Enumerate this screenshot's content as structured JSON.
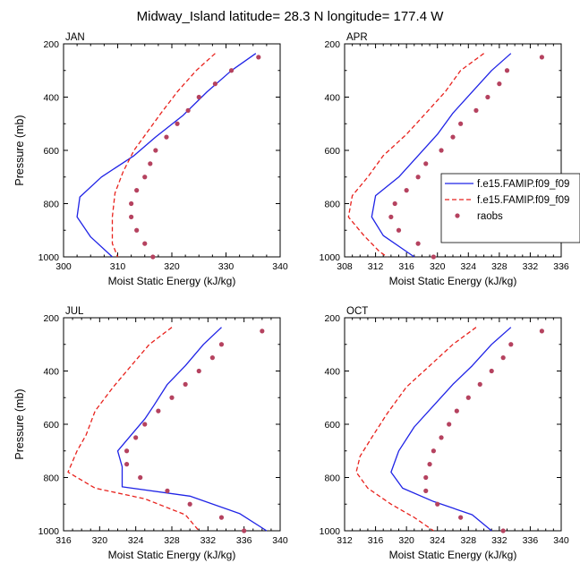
{
  "title": "Midway_Island  latitude= 28.3 N longitude= 177.4 W",
  "colors": {
    "model1": "#1f23e6",
    "model2": "#e8221d",
    "obs": "#b5425f"
  },
  "legend": {
    "placement": "right of APR panel",
    "entries": [
      {
        "label": "f.e15.FAMIP.f09_f09",
        "style": "solid",
        "color": "#1f23e6"
      },
      {
        "label": "f.e15.FAMIP.f09_f09",
        "style": "dashed",
        "color": "#e8221d"
      },
      {
        "label": "raobs",
        "style": "dots",
        "color": "#b5425f"
      }
    ]
  },
  "chart_data": [
    {
      "type": "line",
      "label": "JAN",
      "xlabel": "Moist Static Energy (kJ/kg)",
      "ylabel": "Pressure (mb)",
      "xlim": [
        300,
        340
      ],
      "xticks": [
        300,
        310,
        320,
        330,
        340
      ],
      "xticklabels": [
        "300",
        "310",
        "320",
        "330",
        "340"
      ],
      "ylim": [
        200,
        1000
      ],
      "yticks": [
        200,
        400,
        600,
        800,
        1000
      ],
      "yticklabels": [
        "200",
        "400",
        "600",
        "800",
        "1000"
      ],
      "y_reversed": true,
      "series": [
        {
          "name": "f.e15.FAMIP.f09_f09",
          "style": "solid",
          "points": [
            [
              335.5,
              236
            ],
            [
              331,
              300
            ],
            [
              326.5,
              380
            ],
            [
              322,
              470
            ],
            [
              317,
              550
            ],
            [
              313,
              620
            ],
            [
              307,
              700
            ],
            [
              303,
              775
            ],
            [
              302.5,
              850
            ],
            [
              305,
              925
            ],
            [
              309,
              1000
            ]
          ]
        },
        {
          "name": "f.e15.FAMIP.f09_f09",
          "style": "dashed",
          "points": [
            [
              328,
              236
            ],
            [
              324.5,
              300
            ],
            [
              321,
              380
            ],
            [
              318,
              460
            ],
            [
              315.5,
              530
            ],
            [
              313,
              600
            ],
            [
              311,
              680
            ],
            [
              309.5,
              760
            ],
            [
              309,
              850
            ],
            [
              309,
              950
            ],
            [
              310,
              1000
            ]
          ]
        },
        {
          "name": "raobs",
          "style": "dots",
          "points": [
            [
              336,
              250
            ],
            [
              331,
              300
            ],
            [
              328,
              350
            ],
            [
              325,
              400
            ],
            [
              323,
              450
            ],
            [
              321,
              500
            ],
            [
              319,
              550
            ],
            [
              317,
              600
            ],
            [
              316,
              650
            ],
            [
              315,
              700
            ],
            [
              313.5,
              750
            ],
            [
              312.5,
              800
            ],
            [
              312.5,
              850
            ],
            [
              313.5,
              900
            ],
            [
              315,
              950
            ],
            [
              316.5,
              1000
            ]
          ]
        }
      ]
    },
    {
      "type": "line",
      "label": "APR",
      "xlabel": "Moist Static Energy (kJ/kg)",
      "ylabel": "",
      "xlim": [
        308,
        336
      ],
      "xticks": [
        308,
        312,
        316,
        320,
        324,
        328,
        332,
        336
      ],
      "xticklabels": [
        "308",
        "312",
        "316",
        "320",
        "324",
        "328",
        "332",
        "336"
      ],
      "ylim": [
        200,
        1000
      ],
      "yticks": [
        200,
        400,
        600,
        800,
        1000
      ],
      "yticklabels": [
        "200",
        "400",
        "600",
        "800",
        "1000"
      ],
      "y_reversed": true,
      "series": [
        {
          "name": "f.e15.FAMIP.f09_f09",
          "style": "solid",
          "points": [
            [
              329.5,
              236
            ],
            [
              327,
              300
            ],
            [
              324.5,
              380
            ],
            [
              322,
              460
            ],
            [
              320,
              540
            ],
            [
              317.5,
              620
            ],
            [
              315,
              700
            ],
            [
              312,
              770
            ],
            [
              311.5,
              850
            ],
            [
              313,
              920
            ],
            [
              316,
              980
            ],
            [
              317,
              1000
            ]
          ]
        },
        {
          "name": "f.e15.FAMIP.f09_f09",
          "style": "dashed",
          "points": [
            [
              326,
              236
            ],
            [
              323,
              300
            ],
            [
              321,
              380
            ],
            [
              318.5,
              460
            ],
            [
              316,
              540
            ],
            [
              313,
              620
            ],
            [
              311,
              700
            ],
            [
              309,
              770
            ],
            [
              308.5,
              850
            ],
            [
              310.5,
              920
            ],
            [
              312.5,
              980
            ],
            [
              313.5,
              1000
            ]
          ]
        },
        {
          "name": "raobs",
          "style": "dots",
          "points": [
            [
              333.5,
              250
            ],
            [
              329,
              300
            ],
            [
              328,
              350
            ],
            [
              326.5,
              400
            ],
            [
              325,
              450
            ],
            [
              323,
              500
            ],
            [
              322,
              550
            ],
            [
              320.5,
              600
            ],
            [
              318.5,
              650
            ],
            [
              317.5,
              700
            ],
            [
              316,
              750
            ],
            [
              314.5,
              800
            ],
            [
              314,
              850
            ],
            [
              315,
              900
            ],
            [
              317.5,
              950
            ],
            [
              319.5,
              1000
            ]
          ]
        }
      ]
    },
    {
      "type": "line",
      "label": "JUL",
      "xlabel": "Moist Static Energy (kJ/kg)",
      "ylabel": "Pressure (mb)",
      "xlim": [
        316,
        340
      ],
      "xticks": [
        316,
        320,
        324,
        328,
        332,
        336,
        340
      ],
      "xticklabels": [
        "316",
        "320",
        "324",
        "328",
        "332",
        "336",
        "340"
      ],
      "ylim": [
        200,
        1000
      ],
      "yticks": [
        200,
        400,
        600,
        800,
        1000
      ],
      "yticklabels": [
        "200",
        "400",
        "600",
        "800",
        "1000"
      ],
      "y_reversed": true,
      "series": [
        {
          "name": "f.e15.FAMIP.f09_f09",
          "style": "solid",
          "points": [
            [
              333.5,
              236
            ],
            [
              331.5,
              300
            ],
            [
              329.5,
              380
            ],
            [
              327.5,
              450
            ],
            [
              326,
              530
            ],
            [
              325,
              580
            ],
            [
              323.5,
              640
            ],
            [
              322,
              700
            ],
            [
              322.5,
              760
            ],
            [
              322.5,
              835
            ],
            [
              330,
              870
            ],
            [
              335.5,
              935
            ],
            [
              338.5,
              1000
            ]
          ]
        },
        {
          "name": "f.e15.FAMIP.f09_f09",
          "style": "dashed",
          "points": [
            [
              328,
              236
            ],
            [
              325.5,
              300
            ],
            [
              323.5,
              380
            ],
            [
              321.5,
              460
            ],
            [
              319.5,
              550
            ],
            [
              318.5,
              640
            ],
            [
              317.5,
              700
            ],
            [
              316.5,
              780
            ],
            [
              319.5,
              840
            ],
            [
              325,
              880
            ],
            [
              329.5,
              940
            ],
            [
              331,
              1000
            ]
          ]
        },
        {
          "name": "raobs",
          "style": "dots",
          "points": [
            [
              338,
              250
            ],
            [
              333.5,
              300
            ],
            [
              332.5,
              350
            ],
            [
              331,
              400
            ],
            [
              329.5,
              450
            ],
            [
              328,
              500
            ],
            [
              326.5,
              550
            ],
            [
              325,
              600
            ],
            [
              324,
              650
            ],
            [
              323,
              700
            ],
            [
              323,
              750
            ],
            [
              324.5,
              800
            ],
            [
              327.5,
              850
            ],
            [
              330,
              900
            ],
            [
              333.5,
              950
            ],
            [
              336,
              1000
            ]
          ]
        }
      ]
    },
    {
      "type": "line",
      "label": "OCT",
      "xlabel": "Moist Static Energy (kJ/kg)",
      "ylabel": "",
      "xlim": [
        312,
        340
      ],
      "xticks": [
        312,
        316,
        320,
        324,
        328,
        332,
        336,
        340
      ],
      "xticklabels": [
        "312",
        "316",
        "320",
        "324",
        "328",
        "332",
        "336",
        "340"
      ],
      "ylim": [
        200,
        1000
      ],
      "yticks": [
        200,
        400,
        600,
        800,
        1000
      ],
      "yticklabels": [
        "200",
        "400",
        "600",
        "800",
        "1000"
      ],
      "y_reversed": true,
      "series": [
        {
          "name": "f.e15.FAMIP.f09_f09",
          "style": "solid",
          "points": [
            [
              333.5,
              236
            ],
            [
              331,
              300
            ],
            [
              328.5,
              380
            ],
            [
              326,
              450
            ],
            [
              323.5,
              530
            ],
            [
              321,
              610
            ],
            [
              319,
              700
            ],
            [
              318,
              780
            ],
            [
              319.5,
              840
            ],
            [
              323.5,
              890
            ],
            [
              328.5,
              940
            ],
            [
              331,
              1000
            ]
          ]
        },
        {
          "name": "f.e15.FAMIP.f09_f09",
          "style": "dashed",
          "points": [
            [
              329,
              236
            ],
            [
              326,
              300
            ],
            [
              323,
              380
            ],
            [
              320,
              460
            ],
            [
              317.5,
              560
            ],
            [
              315.5,
              650
            ],
            [
              314,
              720
            ],
            [
              313.5,
              780
            ],
            [
              315,
              840
            ],
            [
              318,
              900
            ],
            [
              321,
              950
            ],
            [
              323.5,
              1000
            ]
          ]
        },
        {
          "name": "raobs",
          "style": "dots",
          "points": [
            [
              337.5,
              250
            ],
            [
              333.5,
              300
            ],
            [
              332.5,
              350
            ],
            [
              331,
              400
            ],
            [
              329.5,
              450
            ],
            [
              328,
              500
            ],
            [
              326.5,
              550
            ],
            [
              325.5,
              600
            ],
            [
              324.5,
              650
            ],
            [
              323.5,
              700
            ],
            [
              323,
              750
            ],
            [
              322.5,
              800
            ],
            [
              322.5,
              850
            ],
            [
              324,
              900
            ],
            [
              327,
              950
            ],
            [
              332.5,
              1000
            ]
          ]
        }
      ]
    }
  ]
}
